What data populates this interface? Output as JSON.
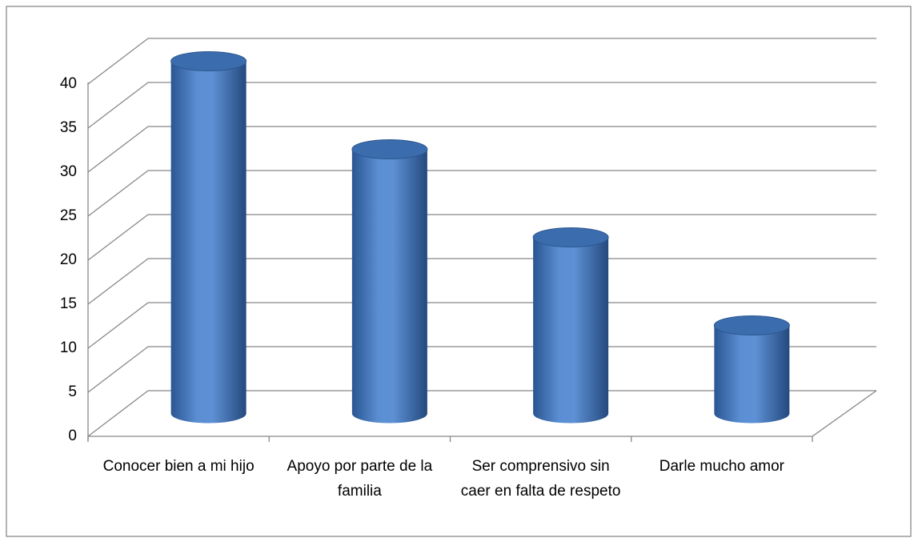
{
  "chart_data": {
    "type": "bar",
    "style": "3d-cylinder",
    "categories": [
      "Conocer bien a mi hijo",
      "Apoyo por parte de la familia",
      "Ser comprensivo sin caer en falta de respeto",
      "Darle mucho amor"
    ],
    "values": [
      40,
      30,
      20,
      10
    ],
    "color": "#4a7ebf",
    "ylim": [
      0,
      40
    ],
    "yticks": [
      0,
      5,
      10,
      15,
      20,
      25,
      30,
      35,
      40
    ],
    "grid": true
  }
}
